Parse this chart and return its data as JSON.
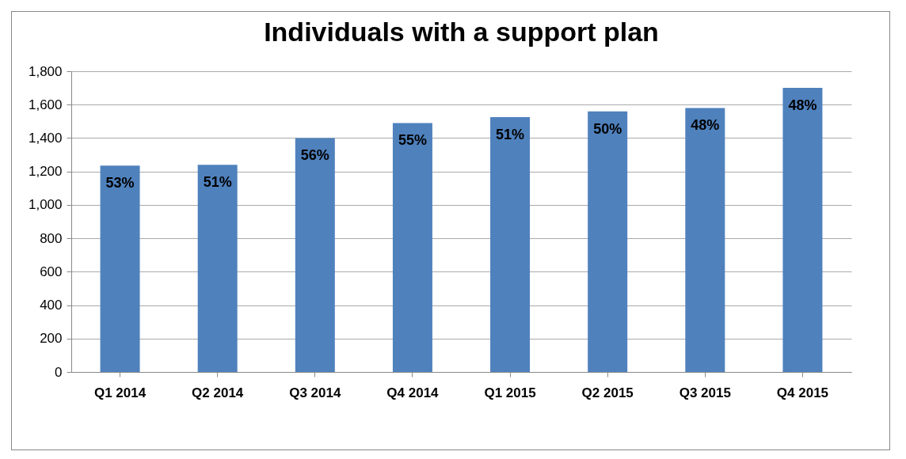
{
  "chart_data": {
    "type": "bar",
    "title": "Individuals with a support plan",
    "categories": [
      "Q1 2014",
      "Q2 2014",
      "Q3 2014",
      "Q4 2014",
      "Q1 2015",
      "Q2 2015",
      "Q3 2015",
      "Q4 2015"
    ],
    "values": [
      1235,
      1240,
      1400,
      1490,
      1525,
      1560,
      1580,
      1700
    ],
    "annotations": [
      {
        "text": "53%",
        "x": "Q1 2014",
        "y": 1235
      },
      {
        "text": "51%",
        "x": "Q2 2014",
        "y": 1240
      },
      {
        "text": "56%",
        "x": "Q3 2014",
        "y": 1400
      },
      {
        "text": "55%",
        "x": "Q4 2014",
        "y": 1490
      },
      {
        "text": "51%",
        "x": "Q1 2015",
        "y": 1525
      },
      {
        "text": "50%",
        "x": "Q2 2015",
        "y": 1560
      },
      {
        "text": "48%",
        "x": "Q3 2015",
        "y": 1580
      },
      {
        "text": "48%",
        "x": "Q4 2015",
        "y": 1700
      }
    ],
    "color": "#4f81bd",
    "ylim": [
      0,
      1800
    ],
    "yticks": [
      0,
      200,
      400,
      600,
      800,
      {
        "value": 1000,
        "label": "1,000"
      },
      {
        "value": 1200,
        "label": "1,200"
      },
      {
        "value": 1400,
        "label": "1,400"
      },
      {
        "value": 1600,
        "label": "1,600"
      },
      {
        "value": 1800,
        "label": "1,800"
      }
    ],
    "grid": "y"
  }
}
